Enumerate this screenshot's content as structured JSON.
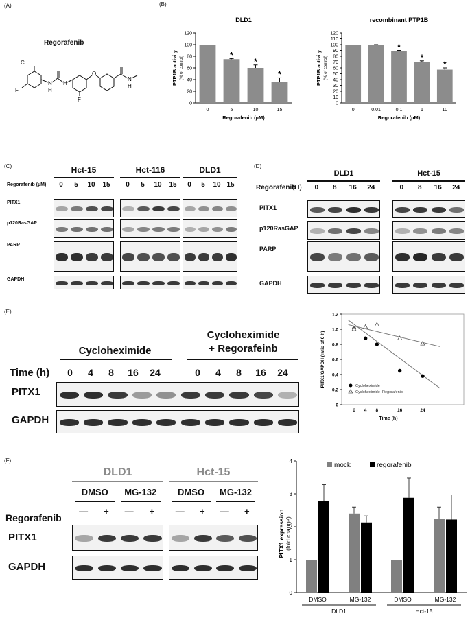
{
  "panelA": {
    "label": "(A)",
    "drug": "Regorafenib",
    "atoms": {
      "cl": "Cl",
      "f3c": "F",
      "nh1": "N",
      "h1": "H",
      "h2": "H",
      "o": "O",
      "f": "F",
      "n": "N",
      "h3": "H"
    }
  },
  "panelB": {
    "label": "(B)",
    "chart_data": [
      {
        "type": "bar",
        "title": "DLD1",
        "categories": [
          "0",
          "5",
          "10",
          "15"
        ],
        "values": [
          100,
          75,
          60,
          36
        ],
        "errors": [
          0,
          1,
          5,
          7
        ],
        "significant": [
          false,
          true,
          true,
          true
        ],
        "star": "*",
        "ylabel": "PTP1B activity",
        "ylabel2": "(% of control)",
        "xlabel": "Regorafenib (µM)",
        "ylim": [
          0,
          120
        ],
        "yticks": [
          "0",
          "20",
          "40",
          "60",
          "80",
          "100",
          "120"
        ]
      },
      {
        "type": "bar",
        "title": "recombinant PTP1B",
        "categories": [
          "0",
          "0.01",
          "0.1",
          "1",
          "10"
        ],
        "values": [
          100,
          99,
          89,
          70,
          57
        ],
        "errors": [
          0,
          1,
          1,
          2,
          3
        ],
        "significant": [
          false,
          false,
          true,
          true,
          true
        ],
        "star": "*",
        "ylabel": "PTP1B activity",
        "ylabel2": "(% of control)",
        "xlabel": "Regorafenib (µM)",
        "ylim": [
          0,
          120
        ],
        "yticks": [
          "0",
          "10",
          "20",
          "30",
          "40",
          "50",
          "60",
          "70",
          "80",
          "90",
          "100",
          "110",
          "120"
        ]
      }
    ]
  },
  "panelC": {
    "label": "(C)",
    "cells": [
      "Hct-15",
      "Hct-116",
      "DLD1"
    ],
    "treat_label": "Regorafenib (µM)",
    "doses": [
      "0",
      "5",
      "10",
      "15"
    ],
    "rows": [
      "PITX1",
      "p120RasGAP",
      "PARP",
      "GAPDH"
    ]
  },
  "panelD": {
    "label": "(D)",
    "cells": [
      "DLD1",
      "Hct-15"
    ],
    "treat_label": "Regorafenib",
    "unit": "(H)",
    "times": [
      "0",
      "8",
      "16",
      "24"
    ],
    "rows": [
      "PITX1",
      "p120RasGAP",
      "PARP",
      "GAPDH"
    ]
  },
  "panelE": {
    "label": "(E)",
    "group1": "Cycloheximide",
    "group2_line1": "Cycloheximide",
    "group2_line2": "+ Regorafeinb",
    "time_label": "Time (h)",
    "times": [
      "0",
      "4",
      "8",
      "16",
      "24"
    ],
    "rows": [
      "PITX1",
      "GAPDH"
    ],
    "chart_data": {
      "type": "scatter",
      "xlabel": "Time (h)",
      "ylabel": "PITX1/GAPDH (ratio of 0 h)",
      "xticks": [
        "0",
        "4",
        "8",
        "16",
        "24"
      ],
      "ylim": [
        0,
        1.2
      ],
      "yticks": [
        "0",
        "0.2",
        "0.4",
        "0.6",
        "0.8",
        "1.0",
        "1.2"
      ],
      "series": [
        {
          "name": "Cycloheximide",
          "marker": "filled-circle",
          "points": [
            [
              0,
              1.01
            ],
            [
              4,
              0.88
            ],
            [
              8,
              0.8
            ],
            [
              16,
              0.45
            ],
            [
              24,
              0.38
            ]
          ],
          "trend": [
            [
              -2,
              1.12
            ],
            [
              30,
              0.22
            ]
          ]
        },
        {
          "name": "Cycloheximide+Regorafenib",
          "marker": "open-triangle",
          "points": [
            [
              0,
              1.0
            ],
            [
              4,
              1.03
            ],
            [
              8,
              1.06
            ],
            [
              16,
              0.88
            ],
            [
              24,
              0.81
            ]
          ],
          "trend": [
            [
              -2,
              1.06
            ],
            [
              30,
              0.77
            ]
          ]
        }
      ]
    }
  },
  "panelF": {
    "label": "(F)",
    "cells": [
      "DLD1",
      "Hct-15"
    ],
    "treatments": [
      "DMSO",
      "MG-132"
    ],
    "treat_label": "Regorafenib",
    "signs": [
      "—",
      "+",
      "—",
      "+"
    ],
    "rows": [
      "PITX1",
      "GAPDH"
    ],
    "chart_data": {
      "type": "bar",
      "ylabel": "PITX1 expression",
      "ylabel2": "(fold change)",
      "ylim": [
        0,
        4
      ],
      "yticks": [
        "0",
        "1",
        "2",
        "3",
        "4"
      ],
      "categories": [
        "DMSO",
        "MG-132",
        "DMSO",
        "MG-132"
      ],
      "groups": [
        "DLD1",
        "Hct-15"
      ],
      "series": [
        {
          "name": "mock",
          "color": "#808080",
          "values": [
            1.0,
            2.4,
            1.0,
            2.25
          ],
          "errors": [
            0,
            0.2,
            0,
            0.35
          ]
        },
        {
          "name": "regorafenib",
          "color": "#000000",
          "values": [
            2.78,
            2.13,
            2.88,
            2.22
          ],
          "errors": [
            0.5,
            0.2,
            0.6,
            0.75
          ]
        }
      ]
    }
  }
}
